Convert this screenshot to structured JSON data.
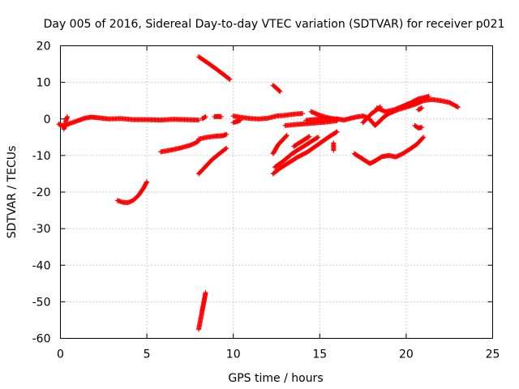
{
  "chart_data": {
    "type": "scatter",
    "title": "Day 005 of 2016, Sidereal Day-to-day VTEC variation (SDTVAR) for receiver p021",
    "xlabel": "GPS time / hours",
    "ylabel": "SDTVAR / TECUs",
    "xlim": [
      0,
      25
    ],
    "ylim": [
      -60,
      20
    ],
    "xticks": [
      0,
      5,
      10,
      15,
      20,
      25
    ],
    "yticks": [
      -60,
      -50,
      -40,
      -30,
      -20,
      -10,
      0,
      10,
      20
    ],
    "grid": true,
    "marker": "+",
    "color": "#ff0000",
    "series": [
      {
        "points": [
          [
            -0.1,
            -1.4
          ],
          [
            0.2,
            -2.0
          ],
          [
            0.4,
            -1.5
          ],
          [
            0.7,
            -1.0
          ],
          [
            1.0,
            -0.5
          ],
          [
            1.4,
            0.2
          ],
          [
            1.8,
            0.5
          ],
          [
            2.2,
            0.3
          ],
          [
            2.8,
            0.0
          ],
          [
            3.5,
            0.1
          ],
          [
            4.2,
            -0.2
          ],
          [
            5.0,
            -0.2
          ],
          [
            5.8,
            -0.3
          ],
          [
            6.5,
            -0.1
          ],
          [
            7.3,
            -0.2
          ],
          [
            8.0,
            -0.3
          ]
        ]
      },
      {
        "points": [
          [
            0.2,
            -2.8
          ],
          [
            0.25,
            -1.8
          ],
          [
            0.3,
            -0.9
          ],
          [
            0.35,
            0.0
          ],
          [
            0.4,
            0.6
          ]
        ]
      },
      {
        "points": [
          [
            3.3,
            -22.3
          ],
          [
            3.6,
            -22.8
          ],
          [
            3.9,
            -22.9
          ],
          [
            4.2,
            -22.3
          ],
          [
            4.5,
            -21.0
          ],
          [
            4.8,
            -19.0
          ],
          [
            5.0,
            -17.2
          ]
        ]
      },
      {
        "points": [
          [
            5.8,
            -9.0
          ],
          [
            6.3,
            -8.6
          ],
          [
            6.9,
            -8.0
          ],
          [
            7.5,
            -7.2
          ],
          [
            7.8,
            -6.6
          ],
          [
            8.0,
            -6.0
          ]
        ]
      },
      {
        "points": [
          [
            8.0,
            -5.5
          ],
          [
            8.5,
            -5.0
          ],
          [
            9.0,
            -4.7
          ],
          [
            9.4,
            -4.6
          ],
          [
            9.6,
            -4.2
          ]
        ]
      },
      {
        "points": [
          [
            8.0,
            -15.0
          ],
          [
            8.4,
            -13.0
          ],
          [
            8.8,
            -11.0
          ],
          [
            9.2,
            -9.5
          ],
          [
            9.6,
            -8.0
          ]
        ]
      },
      {
        "points": [
          [
            8.0,
            17.0
          ],
          [
            8.5,
            15.4
          ],
          [
            9.0,
            13.7
          ],
          [
            9.5,
            11.9
          ],
          [
            9.8,
            10.8
          ]
        ]
      },
      {
        "points": [
          [
            8.0,
            -57.5
          ],
          [
            8.1,
            -55.0
          ],
          [
            8.2,
            -52.5
          ],
          [
            8.3,
            -50.0
          ],
          [
            8.4,
            -47.5
          ]
        ]
      },
      {
        "points": [
          [
            8.2,
            0.1
          ],
          [
            8.3,
            0.3
          ],
          [
            8.4,
            0.6
          ]
        ]
      },
      {
        "points": [
          [
            8.9,
            0.6
          ],
          [
            9.1,
            0.7
          ],
          [
            9.3,
            0.6
          ]
        ]
      },
      {
        "points": [
          [
            10.0,
            0.8
          ],
          [
            10.5,
            0.4
          ],
          [
            11.0,
            0.1
          ],
          [
            11.5,
            0.0
          ],
          [
            12.0,
            0.2
          ],
          [
            12.5,
            0.8
          ],
          [
            13.0,
            1.0
          ],
          [
            13.5,
            1.3
          ],
          [
            14.0,
            1.5
          ]
        ]
      },
      {
        "points": [
          [
            10.0,
            -1.0
          ],
          [
            10.2,
            -0.7
          ],
          [
            10.4,
            -0.4
          ]
        ]
      },
      {
        "points": [
          [
            12.3,
            9.2
          ],
          [
            12.5,
            8.4
          ],
          [
            12.7,
            7.5
          ]
        ]
      },
      {
        "points": [
          [
            12.3,
            -9.5
          ],
          [
            12.6,
            -7.0
          ],
          [
            12.9,
            -5.5
          ],
          [
            13.1,
            -4.5
          ]
        ]
      },
      {
        "points": [
          [
            12.3,
            -15.0
          ],
          [
            12.7,
            -13.5
          ],
          [
            13.2,
            -12.0
          ],
          [
            13.7,
            -10.5
          ],
          [
            14.3,
            -9.0
          ],
          [
            14.9,
            -7.0
          ],
          [
            15.5,
            -5.0
          ],
          [
            16.0,
            -3.5
          ]
        ]
      },
      {
        "points": [
          [
            12.4,
            -13.2
          ],
          [
            12.9,
            -11.5
          ],
          [
            13.4,
            -9.5
          ],
          [
            13.9,
            -8.0
          ],
          [
            14.4,
            -6.5
          ],
          [
            14.9,
            -5.0
          ]
        ]
      },
      {
        "points": [
          [
            13.5,
            -7.5
          ],
          [
            14.0,
            -6.0
          ],
          [
            14.4,
            -4.8
          ]
        ]
      },
      {
        "points": [
          [
            13.0,
            -1.8
          ],
          [
            13.7,
            -1.5
          ],
          [
            14.5,
            -1.2
          ],
          [
            15.3,
            -0.9
          ],
          [
            16.0,
            -0.5
          ]
        ]
      },
      {
        "points": [
          [
            14.5,
            2.0
          ],
          [
            15.0,
            1.0
          ],
          [
            15.5,
            0.3
          ],
          [
            16.0,
            -0.2
          ]
        ]
      },
      {
        "points": [
          [
            14.2,
            -0.4
          ],
          [
            14.8,
            -0.1
          ],
          [
            15.4,
            0.1
          ],
          [
            16.0,
            0.0
          ]
        ]
      },
      {
        "points": [
          [
            16.0,
            0.0
          ],
          [
            16.4,
            -0.3
          ],
          [
            16.8,
            0.2
          ],
          [
            17.2,
            0.6
          ],
          [
            17.5,
            0.8
          ],
          [
            17.8,
            0.3
          ],
          [
            18.0,
            -0.7
          ],
          [
            18.2,
            -1.8
          ],
          [
            18.5,
            -0.5
          ],
          [
            18.7,
            0.5
          ],
          [
            19.0,
            1.5
          ],
          [
            19.5,
            2.5
          ],
          [
            20.0,
            3.2
          ],
          [
            20.5,
            4.0
          ],
          [
            21.0,
            5.0
          ],
          [
            21.5,
            5.3
          ],
          [
            22.0,
            5.0
          ],
          [
            22.5,
            4.5
          ],
          [
            23.0,
            3.2
          ]
        ]
      },
      {
        "points": [
          [
            17.5,
            -1.0
          ],
          [
            17.8,
            0.5
          ],
          [
            18.0,
            1.5
          ],
          [
            18.3,
            2.5
          ],
          [
            18.5,
            3.3
          ]
        ]
      },
      {
        "points": [
          [
            18.3,
            3.0
          ],
          [
            18.8,
            2.0
          ],
          [
            19.3,
            2.5
          ],
          [
            19.8,
            3.5
          ],
          [
            20.3,
            4.5
          ],
          [
            20.7,
            5.5
          ],
          [
            21.0,
            5.8
          ],
          [
            21.3,
            6.2
          ]
        ]
      },
      {
        "points": [
          [
            17.0,
            -9.5
          ],
          [
            17.5,
            -11.0
          ],
          [
            17.9,
            -12.2
          ],
          [
            18.2,
            -11.5
          ],
          [
            18.6,
            -10.3
          ],
          [
            19.0,
            -10.0
          ],
          [
            19.4,
            -10.4
          ],
          [
            19.8,
            -9.5
          ],
          [
            20.2,
            -8.3
          ],
          [
            20.6,
            -7.0
          ],
          [
            21.0,
            -5.0
          ]
        ]
      },
      {
        "points": [
          [
            20.5,
            -1.8
          ],
          [
            20.7,
            -2.5
          ],
          [
            20.9,
            -2.3
          ]
        ]
      },
      {
        "points": [
          [
            20.7,
            2.5
          ],
          [
            20.9,
            3.0
          ]
        ]
      },
      {
        "points": [
          [
            15.8,
            -6.6
          ],
          [
            15.8,
            -8.6
          ]
        ]
      }
    ]
  }
}
